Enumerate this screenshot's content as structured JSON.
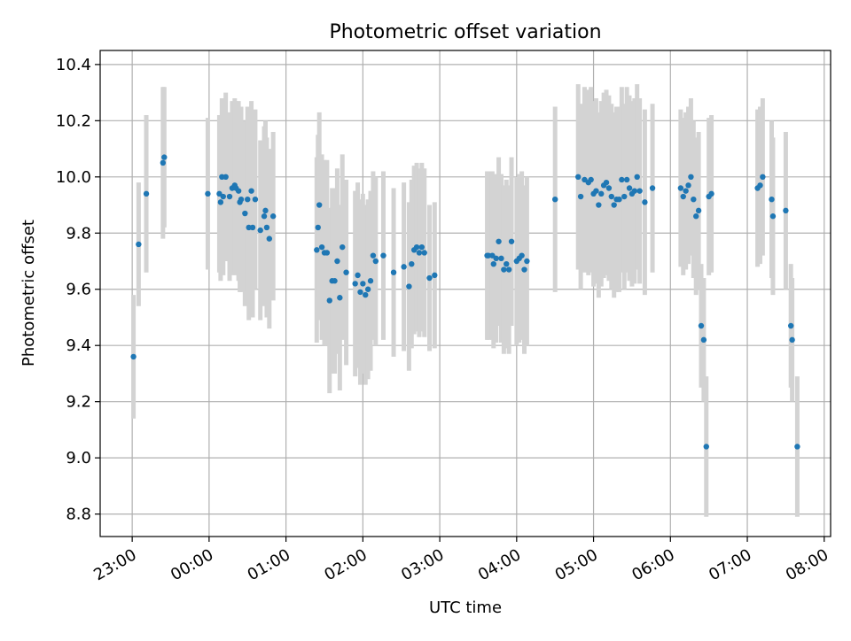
{
  "chart_data": {
    "type": "scatter",
    "title": "Photometric offset variation",
    "xlabel": "UTC time",
    "ylabel": "Photometric offset",
    "grid": true,
    "xlim": [
      "22:35",
      "08:05"
    ],
    "ylim": [
      8.72,
      10.45
    ],
    "x_ticks": [
      "23:00",
      "00:00",
      "01:00",
      "02:00",
      "03:00",
      "04:00",
      "05:00",
      "06:00",
      "07:00",
      "08:00"
    ],
    "y_ticks": [
      "8.8",
      "9.0",
      "9.2",
      "9.4",
      "9.6",
      "9.8",
      "10.0",
      "10.2",
      "10.4"
    ],
    "point_color": "#1f77b4",
    "errorbar_color": "#d3d3d3",
    "series": [
      {
        "time_utc": [
          "23:01",
          "23:05",
          "23:11",
          "23:24",
          "23:25",
          "23:59",
          "00:08",
          "00:09",
          "00:10",
          "00:11",
          "00:13",
          "00:16",
          "00:18",
          "00:20",
          "00:21",
          "00:23",
          "00:24",
          "00:25",
          "00:28",
          "00:30",
          "00:31",
          "00:33",
          "00:34",
          "00:36",
          "00:40",
          "00:43",
          "00:44",
          "00:45",
          "00:47",
          "00:50",
          "01:24",
          "01:25",
          "01:26",
          "01:28",
          "01:30",
          "01:32",
          "01:34",
          "01:36",
          "01:38",
          "01:40",
          "01:42",
          "01:44",
          "01:47",
          "01:54",
          "01:56",
          "01:58",
          "02:00",
          "02:02",
          "02:04",
          "02:06",
          "02:08",
          "02:10",
          "02:16",
          "02:24",
          "02:32",
          "02:36",
          "02:38",
          "02:40",
          "02:42",
          "02:44",
          "02:46",
          "02:48",
          "02:52",
          "02:56",
          "03:37",
          "03:38",
          "03:41",
          "03:42",
          "03:44",
          "03:46",
          "03:48",
          "03:50",
          "03:52",
          "03:54",
          "03:56",
          "04:00",
          "04:02",
          "04:04",
          "04:06",
          "04:08",
          "04:30",
          "04:48",
          "04:50",
          "04:53",
          "04:56",
          "04:58",
          "05:00",
          "05:02",
          "05:04",
          "05:06",
          "05:08",
          "05:10",
          "05:12",
          "05:14",
          "05:16",
          "05:18",
          "05:20",
          "05:22",
          "05:24",
          "05:26",
          "05:28",
          "05:30",
          "05:32",
          "05:34",
          "05:36",
          "05:40",
          "05:46",
          "06:08",
          "06:10",
          "06:12",
          "06:14",
          "06:16",
          "06:18",
          "06:20",
          "06:22",
          "06:24",
          "06:26",
          "06:28",
          "06:30",
          "06:32",
          "07:08",
          "07:10",
          "07:12",
          "07:19",
          "07:20",
          "07:30",
          "07:34",
          "07:35",
          "07:39"
        ],
        "offset": [
          9.36,
          9.76,
          9.94,
          10.05,
          10.07,
          9.94,
          9.94,
          9.91,
          10.0,
          9.93,
          10.0,
          9.93,
          9.96,
          9.97,
          9.96,
          9.95,
          9.91,
          9.92,
          9.87,
          9.92,
          9.82,
          9.95,
          9.82,
          9.92,
          9.81,
          9.86,
          9.88,
          9.82,
          9.78,
          9.86,
          9.74,
          9.82,
          9.9,
          9.75,
          9.73,
          9.73,
          9.56,
          9.63,
          9.63,
          9.7,
          9.57,
          9.75,
          9.66,
          9.62,
          9.65,
          9.59,
          9.62,
          9.58,
          9.6,
          9.63,
          9.72,
          9.7,
          9.72,
          9.66,
          9.68,
          9.61,
          9.69,
          9.74,
          9.75,
          9.73,
          9.75,
          9.73,
          9.64,
          9.65,
          9.72,
          9.72,
          9.72,
          9.69,
          9.71,
          9.77,
          9.71,
          9.67,
          9.69,
          9.67,
          9.77,
          9.7,
          9.71,
          9.72,
          9.67,
          9.7,
          9.92,
          10.0,
          9.93,
          9.99,
          9.98,
          9.99,
          9.94,
          9.95,
          9.9,
          9.94,
          9.97,
          9.98,
          9.96,
          9.93,
          9.9,
          9.92,
          9.92,
          9.99,
          9.93,
          9.99,
          9.96,
          9.94,
          9.95,
          10.0,
          9.95,
          9.91,
          9.96,
          9.96,
          9.93,
          9.95,
          9.97,
          10.0,
          9.92,
          9.86,
          9.88,
          9.47,
          9.42,
          9.04,
          9.93,
          9.94,
          9.96,
          9.97,
          10.0,
          9.92,
          9.86,
          9.88,
          9.47,
          9.42,
          9.04
        ],
        "error": [
          0.22,
          0.22,
          0.28,
          0.27,
          0.25,
          0.27,
          0.28,
          0.28,
          0.28,
          0.28,
          0.3,
          0.3,
          0.31,
          0.31,
          0.31,
          0.32,
          0.32,
          0.33,
          0.33,
          0.33,
          0.33,
          0.32,
          0.32,
          0.32,
          0.32,
          0.32,
          0.32,
          0.32,
          0.32,
          0.3,
          0.33,
          0.33,
          0.33,
          0.33,
          0.33,
          0.33,
          0.33,
          0.33,
          0.33,
          0.33,
          0.33,
          0.33,
          0.33,
          0.33,
          0.33,
          0.33,
          0.32,
          0.32,
          0.32,
          0.32,
          0.3,
          0.3,
          0.3,
          0.3,
          0.3,
          0.3,
          0.3,
          0.3,
          0.3,
          0.3,
          0.3,
          0.3,
          0.26,
          0.26,
          0.3,
          0.3,
          0.3,
          0.3,
          0.3,
          0.3,
          0.3,
          0.3,
          0.3,
          0.3,
          0.3,
          0.3,
          0.3,
          0.3,
          0.3,
          0.3,
          0.33,
          0.33,
          0.33,
          0.33,
          0.33,
          0.33,
          0.33,
          0.33,
          0.33,
          0.33,
          0.33,
          0.33,
          0.33,
          0.33,
          0.33,
          0.33,
          0.33,
          0.33,
          0.33,
          0.33,
          0.33,
          0.33,
          0.33,
          0.33,
          0.33,
          0.33,
          0.3,
          0.28,
          0.28,
          0.28,
          0.28,
          0.28,
          0.28,
          0.28,
          0.28,
          0.22,
          0.22,
          0.25,
          0.28,
          0.28,
          0.28,
          0.28,
          0.28,
          0.28,
          0.28,
          0.28,
          0.22,
          0.22,
          0.25
        ]
      }
    ]
  }
}
